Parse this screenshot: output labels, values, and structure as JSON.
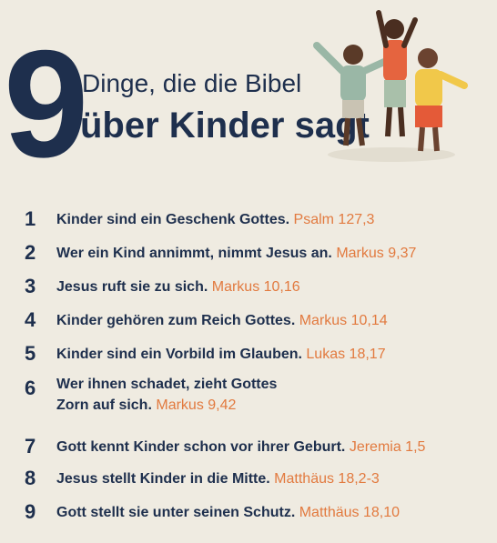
{
  "header": {
    "number": "9",
    "line1": "Dinge, die die Bibel",
    "line2": "über Kinder sagt"
  },
  "items": [
    {
      "number": "1",
      "lines": [
        "Kinder sind ein Geschenk Gottes."
      ],
      "reference": "Psalm 127,3"
    },
    {
      "number": "2",
      "lines": [
        "Wer ein Kind annimmt, nimmt Jesus an."
      ],
      "reference": "Markus 9,37"
    },
    {
      "number": "3",
      "lines": [
        "Jesus ruft sie zu sich."
      ],
      "reference": "Markus 10,16"
    },
    {
      "number": "4",
      "lines": [
        "Kinder gehören zum Reich Gottes."
      ],
      "reference": "Markus 10,14"
    },
    {
      "number": "5",
      "lines": [
        "Kinder sind ein Vorbild im Glauben."
      ],
      "reference": "Lukas 18,17"
    },
    {
      "number": "6",
      "lines": [
        "Wer ihnen schadet, zieht Gottes",
        "Zorn auf sich."
      ],
      "reference": "Markus 9,42"
    },
    {
      "number": "7",
      "lines": [
        "Gott kennt Kinder schon vor ihrer Geburt."
      ],
      "reference": "Jeremia 1,5"
    },
    {
      "number": "8",
      "lines": [
        "Jesus stellt Kinder in die Mitte."
      ],
      "reference": "Matthäus 18,2-3"
    },
    {
      "number": "9",
      "lines": [
        "Gott stellt sie unter seinen Schutz."
      ],
      "reference": "Matthäus 18,10"
    }
  ]
}
